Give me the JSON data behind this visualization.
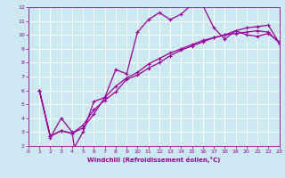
{
  "xlabel": "Windchill (Refroidissement éolien,°C)",
  "xlim": [
    0,
    23
  ],
  "ylim": [
    2,
    12
  ],
  "xticks": [
    0,
    1,
    2,
    3,
    4,
    5,
    6,
    7,
    8,
    9,
    10,
    11,
    12,
    13,
    14,
    15,
    16,
    17,
    18,
    19,
    20,
    21,
    22,
    23
  ],
  "yticks": [
    2,
    3,
    4,
    5,
    6,
    7,
    8,
    9,
    10,
    11,
    12
  ],
  "bg_color": "#cce8f0",
  "grid_color": "#ffffff",
  "line_color": "#990099",
  "line1_x": [
    1,
    2,
    3,
    4,
    4.2,
    5,
    6,
    7,
    8,
    9,
    10,
    11,
    12,
    13,
    14,
    15,
    16,
    17,
    18,
    19,
    20,
    21,
    22,
    23
  ],
  "line1_y": [
    6.0,
    2.6,
    4.0,
    3.0,
    1.9,
    3.0,
    5.2,
    5.5,
    7.5,
    7.2,
    10.2,
    11.1,
    11.6,
    11.1,
    11.5,
    12.2,
    12.1,
    10.5,
    9.7,
    10.3,
    10.0,
    9.9,
    10.1,
    9.5
  ],
  "line2_x": [
    1,
    2,
    3,
    4,
    5,
    6,
    7,
    8,
    9,
    10,
    11,
    12,
    13,
    14,
    15,
    16,
    17,
    18,
    19,
    20,
    21,
    22,
    23
  ],
  "line2_y": [
    6.0,
    2.7,
    3.1,
    2.9,
    3.3,
    4.3,
    5.5,
    6.3,
    6.9,
    7.3,
    7.9,
    8.3,
    8.7,
    9.0,
    9.3,
    9.6,
    9.8,
    10.0,
    10.1,
    10.2,
    10.3,
    10.2,
    9.4
  ],
  "line3_x": [
    1,
    2,
    3,
    4,
    5,
    6,
    7,
    8,
    9,
    10,
    11,
    12,
    13,
    14,
    15,
    16,
    17,
    18,
    19,
    20,
    21,
    22,
    23
  ],
  "line3_y": [
    6.0,
    2.7,
    3.1,
    2.9,
    3.5,
    4.6,
    5.3,
    5.9,
    6.8,
    7.1,
    7.6,
    8.0,
    8.5,
    8.9,
    9.2,
    9.5,
    9.8,
    10.0,
    10.3,
    10.5,
    10.6,
    10.7,
    9.4
  ]
}
